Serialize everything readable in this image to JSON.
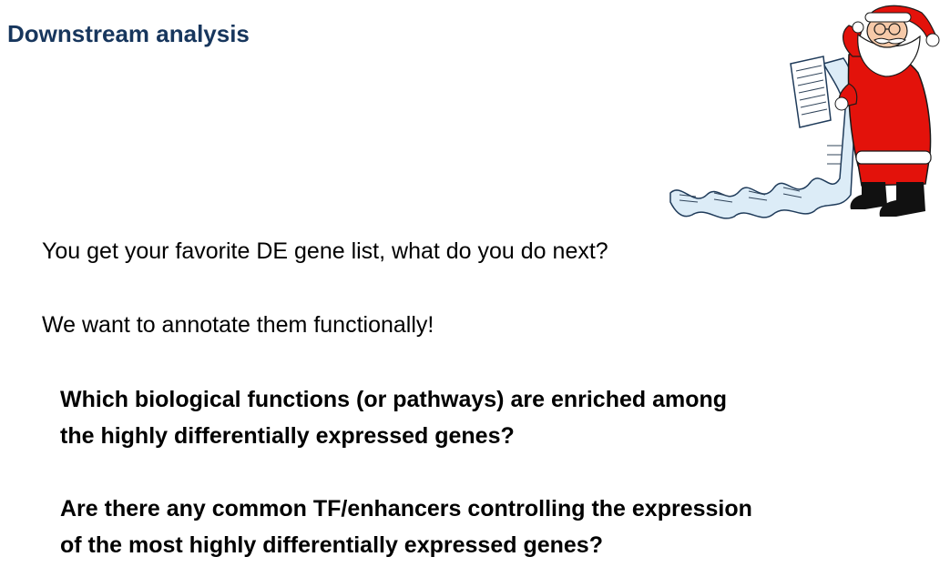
{
  "slide": {
    "title": "Downstream analysis",
    "intro_line": "You get your favorite DE gene list, what do you do next?",
    "goal_line": "We want to annotate them functionally!",
    "questions": [
      {
        "lines": [
          "Which biological functions (or pathways) are enriched among",
          "the highly differentially expressed genes?"
        ]
      },
      {
        "lines": [
          "Are there any common TF/enhancers controlling the expression",
          "of the most highly differentially expressed genes?"
        ]
      }
    ]
  },
  "illustration": {
    "icon": "santa-with-list-illustration",
    "colors": {
      "suit": "#e3120b",
      "fur": "#ffffff",
      "scroll": "#dcecf7",
      "boots": "#111111",
      "skin": "#f6c9a8"
    }
  },
  "colors": {
    "title": "#17365d",
    "text": "#000000",
    "background": "#ffffff"
  }
}
